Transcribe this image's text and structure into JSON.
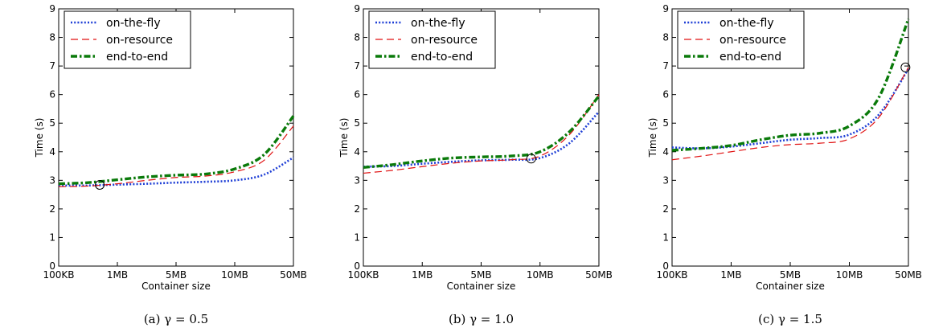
{
  "chart_data": [
    {
      "type": "line",
      "caption": "(a) γ = 0.5",
      "xlabel": "Container size",
      "ylabel": "Time (s)",
      "x_ticks": [
        "100KB",
        "1MB",
        "5MB",
        "10MB",
        "50MB"
      ],
      "y_ticks": [
        "0",
        "1",
        "2",
        "3",
        "4",
        "5",
        "6",
        "7",
        "8",
        "9"
      ],
      "ylim": [
        0,
        9
      ],
      "xlim": [
        0,
        4
      ],
      "legend_position": "top-left",
      "grid": false,
      "series": [
        {
          "name": "on-the-fly",
          "color": "#1f3fd6",
          "style": "dotted",
          "x": [
            0,
            0.5,
            1,
            1.5,
            2,
            2.5,
            3,
            3.5,
            4
          ],
          "y": [
            2.82,
            2.82,
            2.85,
            2.88,
            2.92,
            2.95,
            3.0,
            3.2,
            3.8
          ]
        },
        {
          "name": "on-resource",
          "color": "#e01010",
          "style": "dashed",
          "x": [
            0,
            0.5,
            1,
            1.5,
            2,
            2.5,
            3,
            3.5,
            4
          ],
          "y": [
            2.78,
            2.8,
            2.88,
            3.0,
            3.1,
            3.15,
            3.3,
            3.7,
            4.9
          ]
        },
        {
          "name": "end-to-end",
          "color": "#0a7a0a",
          "style": "dashdot",
          "x": [
            0,
            0.5,
            1,
            1.5,
            2,
            2.5,
            3,
            3.5,
            4
          ],
          "y": [
            2.88,
            2.92,
            3.02,
            3.12,
            3.18,
            3.22,
            3.4,
            3.9,
            5.25
          ]
        }
      ],
      "markers": [
        {
          "x": 0.7,
          "y": 2.84
        }
      ]
    },
    {
      "type": "line",
      "caption": "(b) γ = 1.0",
      "xlabel": "Container size",
      "ylabel": "Time (s)",
      "x_ticks": [
        "100KB",
        "1MB",
        "5MB",
        "10MB",
        "50MB"
      ],
      "y_ticks": [
        "0",
        "1",
        "2",
        "3",
        "4",
        "5",
        "6",
        "7",
        "8",
        "9"
      ],
      "ylim": [
        0,
        9
      ],
      "xlim": [
        0,
        4
      ],
      "legend_position": "top-left",
      "grid": false,
      "series": [
        {
          "name": "on-the-fly",
          "color": "#1f3fd6",
          "style": "dotted",
          "x": [
            0,
            0.5,
            1,
            1.5,
            2,
            2.5,
            3,
            3.5,
            4
          ],
          "y": [
            3.48,
            3.5,
            3.58,
            3.65,
            3.7,
            3.72,
            3.78,
            4.3,
            5.4
          ]
        },
        {
          "name": "on-resource",
          "color": "#e01010",
          "style": "dashed",
          "x": [
            0,
            0.5,
            1,
            1.5,
            2,
            2.5,
            3,
            3.5,
            4
          ],
          "y": [
            3.25,
            3.35,
            3.48,
            3.6,
            3.68,
            3.72,
            3.85,
            4.6,
            6.0
          ]
        },
        {
          "name": "end-to-end",
          "color": "#0a7a0a",
          "style": "dashdot",
          "x": [
            0,
            0.5,
            1,
            1.5,
            2,
            2.5,
            3,
            3.5,
            4
          ],
          "y": [
            3.45,
            3.55,
            3.68,
            3.78,
            3.82,
            3.85,
            4.0,
            4.7,
            5.95
          ]
        }
      ],
      "markers": [
        {
          "x": 2.85,
          "y": 3.76
        }
      ]
    },
    {
      "type": "line",
      "caption": "(c) γ = 1.5",
      "xlabel": "Container size",
      "ylabel": "Time (s)",
      "x_ticks": [
        "100KB",
        "1MB",
        "5MB",
        "10MB",
        "50MB"
      ],
      "y_ticks": [
        "0",
        "1",
        "2",
        "3",
        "4",
        "5",
        "6",
        "7",
        "8",
        "9"
      ],
      "ylim": [
        0,
        9
      ],
      "xlim": [
        0,
        4
      ],
      "legend_position": "top-left",
      "grid": false,
      "series": [
        {
          "name": "on-the-fly",
          "color": "#1f3fd6",
          "style": "dotted",
          "x": [
            0,
            0.5,
            1,
            1.5,
            2,
            2.5,
            3,
            3.5,
            4
          ],
          "y": [
            4.15,
            4.12,
            4.18,
            4.3,
            4.42,
            4.48,
            4.6,
            5.3,
            6.9
          ]
        },
        {
          "name": "on-resource",
          "color": "#e01010",
          "style": "dashed",
          "x": [
            0,
            0.5,
            1,
            1.5,
            2,
            2.5,
            3,
            3.5,
            4
          ],
          "y": [
            3.72,
            3.85,
            4.0,
            4.15,
            4.25,
            4.3,
            4.45,
            5.2,
            6.95
          ]
        },
        {
          "name": "end-to-end",
          "color": "#0a7a0a",
          "style": "dashdot",
          "x": [
            0,
            0.5,
            1,
            1.5,
            2,
            2.5,
            3,
            3.5,
            4
          ],
          "y": [
            4.05,
            4.12,
            4.22,
            4.42,
            4.58,
            4.65,
            4.9,
            5.9,
            8.65
          ]
        }
      ],
      "markers": [
        {
          "x": 3.95,
          "y": 6.95
        }
      ]
    }
  ]
}
